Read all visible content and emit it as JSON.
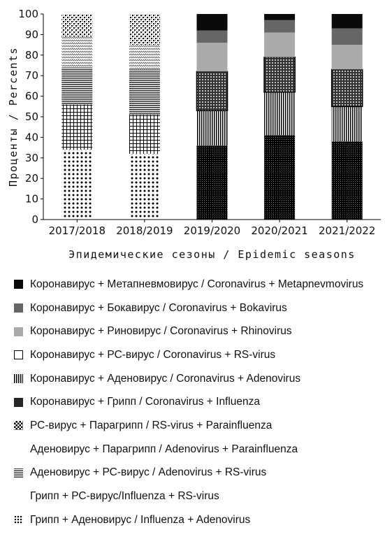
{
  "chart_data": {
    "type": "bar",
    "stacked": true,
    "categories": [
      "2017/2018",
      "2018/2019",
      "2019/2020",
      "2020/2021",
      "2021/2022"
    ],
    "ylim": [
      0,
      100
    ],
    "yticks": [
      0,
      10,
      20,
      30,
      40,
      50,
      60,
      70,
      80,
      90,
      100
    ],
    "ylabel": "Проценты / Percents",
    "xlabel": "Эпидемические сезоны / Epidemic seasons",
    "grid": false,
    "legend_position": "bottom",
    "series": [
      {
        "name": "Грипп + Аденовирус / Influenza + Adenovirus",
        "pattern": "dots",
        "values": [
          34,
          32,
          0,
          0,
          0
        ]
      },
      {
        "name": "Грипп + РС-вирус/Influenza + RS-virus",
        "pattern": "grid",
        "values": [
          22,
          19,
          0,
          0,
          0
        ]
      },
      {
        "name": "Аденовирус + РС-вирус / Adenovirus + RS-virus",
        "pattern": "hlines",
        "values": [
          18,
          22,
          0,
          0,
          0
        ]
      },
      {
        "name": "Аденовирус + Парагрипп / Adenovirus + Parainfluenza",
        "pattern": "zigzag",
        "values": [
          15,
          12,
          0,
          0,
          0
        ]
      },
      {
        "name": "РС-вирус + Парагрипп / RS-virus + Parainfluenza",
        "pattern": "checker",
        "values": [
          11,
          15,
          0,
          0,
          0
        ]
      },
      {
        "name": "Коронавирус + Грипп / Coronavirus + Influenza",
        "pattern": "densedots",
        "values": [
          0,
          0,
          36,
          41,
          38
        ]
      },
      {
        "name": "Коронавирус + Аденовирус / Coronavirus + Adenovirus",
        "pattern": "vlines",
        "values": [
          0,
          0,
          17,
          21,
          17
        ]
      },
      {
        "name": "Коронавирус + РС-вирус / Coronavirus + RS-virus",
        "pattern": "boxed",
        "values": [
          0,
          0,
          19,
          17,
          18
        ]
      },
      {
        "name": "Коронавирус + Риновирус / Coronavirus + Rhinovirus",
        "pattern": "lightgray",
        "values": [
          0,
          0,
          14,
          12,
          12
        ]
      },
      {
        "name": "Коронавирус + Бокавирус / Coronavirus + Bokavirus",
        "pattern": "darkgray",
        "values": [
          0,
          0,
          6,
          6,
          8
        ]
      },
      {
        "name": "Коронавирус + Метапневмовирус / Coronavirus + Metapnevmovirus",
        "pattern": "black",
        "values": [
          0,
          0,
          8,
          3,
          7
        ]
      }
    ],
    "legend_order": [
      10,
      9,
      8,
      7,
      6,
      5,
      4,
      3,
      2,
      1,
      0
    ]
  }
}
